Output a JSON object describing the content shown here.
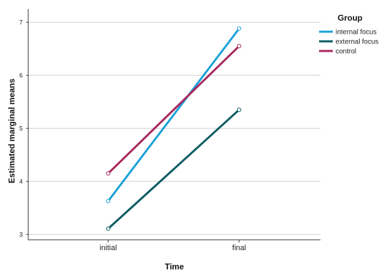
{
  "chart_data": {
    "type": "line",
    "title": "",
    "xlabel": "Time",
    "ylabel": "Estimated marginal means",
    "categories": [
      "initial",
      "final"
    ],
    "ylim": [
      2.9,
      7.25
    ],
    "yticks": [
      "3",
      "4",
      "5",
      "6",
      "7"
    ],
    "grid": "horizontal",
    "legend": {
      "title": "Group",
      "placement": "top-right"
    },
    "series": [
      {
        "name": "internal focus",
        "color": "#1aa1d8",
        "values": [
          3.63,
          6.88
        ]
      },
      {
        "name": "external focus",
        "color": "#0b5b63",
        "values": [
          3.11,
          5.35
        ]
      },
      {
        "name": "control",
        "color": "#a8285f",
        "values": [
          4.15,
          6.55
        ]
      }
    ]
  }
}
